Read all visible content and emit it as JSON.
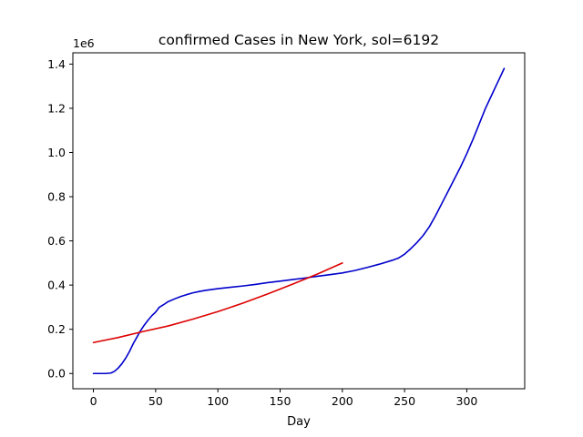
{
  "chart_data": {
    "type": "line",
    "title": "confirmed Cases in New York, sol=6192",
    "xlabel": "Day",
    "ylabel": "",
    "y_offset_label": "1e6",
    "xlim": [
      -16.5,
      346.5
    ],
    "ylim": [
      -0.069,
      1.451
    ],
    "x_ticks": [
      0,
      50,
      100,
      150,
      200,
      250,
      300
    ],
    "y_ticks": [
      0.0,
      0.2,
      0.4,
      0.6,
      0.8,
      1.0,
      1.2,
      1.4
    ],
    "y_tick_labels": [
      "0.0",
      "0.2",
      "0.4",
      "0.6",
      "0.8",
      "1.0",
      "1.2",
      "1.4"
    ],
    "grid": false,
    "legend": false,
    "series": [
      {
        "color": "#0000cc",
        "x": [
          0,
          5,
          10,
          14,
          17,
          20,
          23,
          26,
          29,
          32,
          35,
          38,
          41,
          44,
          47,
          50,
          53,
          56,
          60,
          65,
          70,
          75,
          80,
          85,
          90,
          100,
          110,
          120,
          130,
          140,
          150,
          160,
          170,
          180,
          190,
          200,
          210,
          220,
          230,
          240,
          245,
          250,
          255,
          260,
          265,
          270,
          275,
          280,
          285,
          290,
          295,
          300,
          305,
          310,
          315,
          320,
          325,
          330
        ],
        "y": [
          0.0,
          0.0,
          0.0,
          0.002,
          0.01,
          0.025,
          0.045,
          0.07,
          0.1,
          0.135,
          0.165,
          0.195,
          0.22,
          0.242,
          0.262,
          0.278,
          0.3,
          0.31,
          0.325,
          0.337,
          0.348,
          0.357,
          0.365,
          0.371,
          0.376,
          0.384,
          0.39,
          0.396,
          0.403,
          0.411,
          0.418,
          0.425,
          0.432,
          0.44,
          0.447,
          0.455,
          0.466,
          0.48,
          0.495,
          0.512,
          0.522,
          0.54,
          0.565,
          0.593,
          0.625,
          0.665,
          0.715,
          0.77,
          0.825,
          0.88,
          0.935,
          0.995,
          1.06,
          1.13,
          1.2,
          1.26,
          1.32,
          1.38
        ]
      },
      {
        "color": "#dd0000",
        "x": [
          0,
          20,
          40,
          60,
          80,
          100,
          120,
          140,
          160,
          180,
          200
        ],
        "y": [
          0.14,
          0.163,
          0.19,
          0.215,
          0.246,
          0.28,
          0.318,
          0.36,
          0.404,
          0.45,
          0.5
        ]
      }
    ]
  }
}
